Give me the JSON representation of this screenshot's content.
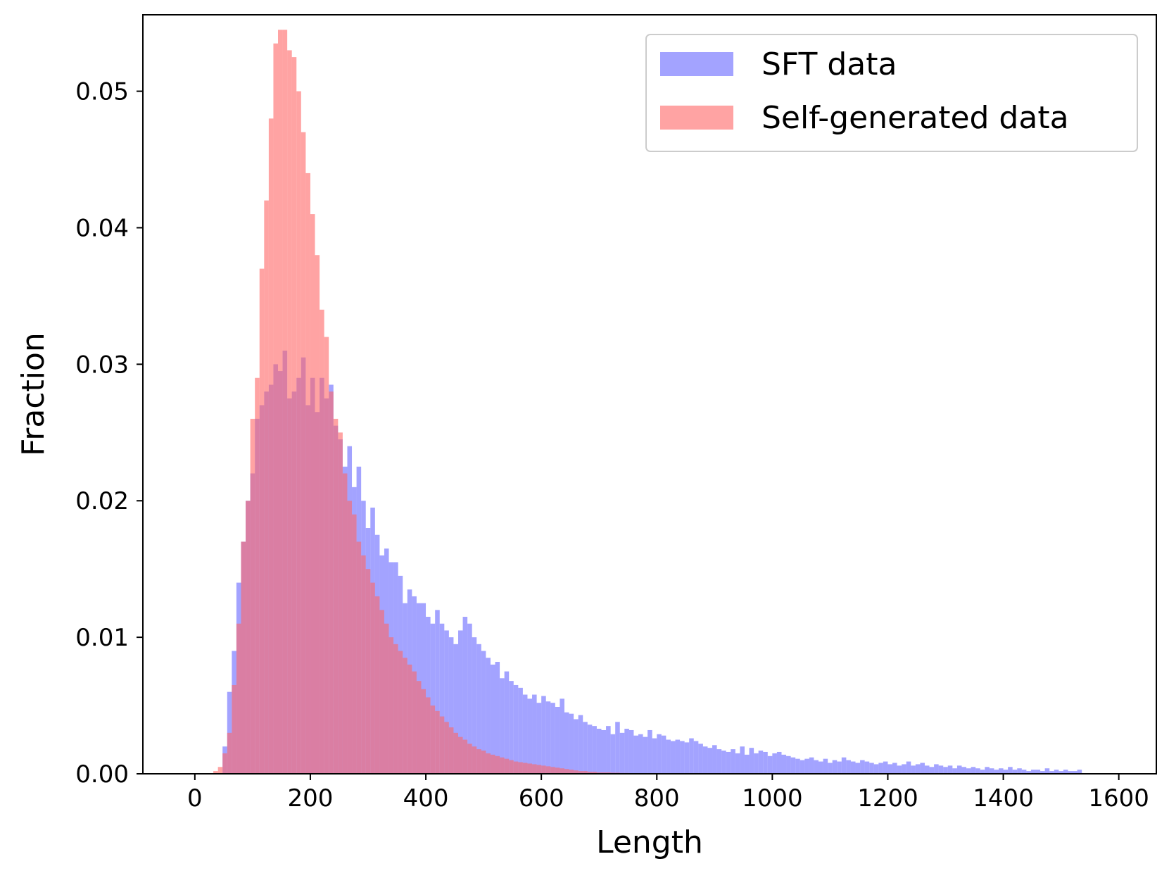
{
  "chart_data": {
    "type": "bar",
    "subtype": "overlapping-histogram",
    "xlabel": "Length",
    "ylabel": "Fraction",
    "xlim": [
      -90,
      1665
    ],
    "ylim": [
      0,
      0.0556
    ],
    "xticks": [
      0,
      200,
      400,
      600,
      800,
      1000,
      1200,
      1400,
      1600
    ],
    "yticks": [
      0.0,
      0.01,
      0.02,
      0.03,
      0.04,
      0.05
    ],
    "xtick_labels": [
      "0",
      "200",
      "400",
      "600",
      "800",
      "1000",
      "1200",
      "1400",
      "1600"
    ],
    "ytick_labels": [
      "0.00",
      "0.01",
      "0.02",
      "0.03",
      "0.04",
      "0.05"
    ],
    "grid": false,
    "legend": {
      "position": "top-right"
    },
    "bin_start": 0,
    "bin_width": 8,
    "series": [
      {
        "name": "SFT data",
        "color": "#6666ff",
        "opacity": 0.6,
        "values": [
          0,
          0,
          0,
          0,
          0,
          0,
          0.002,
          0.006,
          0.009,
          0.014,
          0.017,
          0.02,
          0.022,
          0.026,
          0.027,
          0.028,
          0.0285,
          0.03,
          0.0295,
          0.031,
          0.0275,
          0.028,
          0.029,
          0.0305,
          0.027,
          0.029,
          0.0265,
          0.029,
          0.0275,
          0.0285,
          0.0255,
          0.0245,
          0.0225,
          0.024,
          0.021,
          0.0225,
          0.02,
          0.018,
          0.0195,
          0.0175,
          0.016,
          0.0165,
          0.0155,
          0.0155,
          0.0145,
          0.0125,
          0.0135,
          0.013,
          0.0125,
          0.0125,
          0.0115,
          0.011,
          0.012,
          0.011,
          0.0105,
          0.01,
          0.0095,
          0.0105,
          0.0115,
          0.011,
          0.01,
          0.0095,
          0.009,
          0.0085,
          0.008,
          0.0082,
          0.007,
          0.0075,
          0.0068,
          0.0065,
          0.0063,
          0.0058,
          0.0055,
          0.0058,
          0.0052,
          0.0057,
          0.0053,
          0.0052,
          0.0049,
          0.0055,
          0.0045,
          0.0044,
          0.004,
          0.0043,
          0.0038,
          0.0036,
          0.0035,
          0.0033,
          0.0032,
          0.0035,
          0.0029,
          0.0038,
          0.003,
          0.0033,
          0.0032,
          0.0028,
          0.0029,
          0.0027,
          0.0032,
          0.0026,
          0.0029,
          0.0028,
          0.0025,
          0.0024,
          0.0025,
          0.0024,
          0.0023,
          0.0026,
          0.0024,
          0.0022,
          0.002,
          0.0019,
          0.0021,
          0.0018,
          0.0017,
          0.0016,
          0.0018,
          0.0015,
          0.002,
          0.0014,
          0.0019,
          0.0015,
          0.0017,
          0.0016,
          0.0013,
          0.0015,
          0.0016,
          0.0014,
          0.0013,
          0.0012,
          0.0011,
          0.001,
          0.0011,
          0.0012,
          0.001,
          0.0009,
          0.0011,
          0.0008,
          0.001,
          0.0009,
          0.0012,
          0.001,
          0.0009,
          0.0008,
          0.001,
          0.0009,
          0.0008,
          0.0007,
          0.0008,
          0.0009,
          0.0007,
          0.0008,
          0.0006,
          0.0007,
          0.0009,
          0.0006,
          0.0007,
          0.0008,
          0.0006,
          0.0005,
          0.0007,
          0.0006,
          0.0005,
          0.0006,
          0.0004,
          0.0006,
          0.0005,
          0.0004,
          0.0005,
          0.0004,
          0.0003,
          0.0005,
          0.0004,
          0.0003,
          0.0004,
          0.0003,
          0.0005,
          0.0003,
          0.0004,
          0.0003,
          0.0002,
          0.0003,
          0.0003,
          0.0002,
          0.0004,
          0.0002,
          0.0003,
          0.0002,
          0.0003,
          0.0002,
          0.0002,
          0.0003
        ]
      },
      {
        "name": "Self-generated data",
        "color": "#ff6666",
        "opacity": 0.6,
        "values": [
          0,
          0,
          0,
          0,
          0.0002,
          0.0005,
          0.0015,
          0.003,
          0.0065,
          0.011,
          0.017,
          0.02,
          0.026,
          0.029,
          0.037,
          0.042,
          0.048,
          0.0535,
          0.0545,
          0.0545,
          0.053,
          0.0525,
          0.05,
          0.047,
          0.044,
          0.041,
          0.038,
          0.034,
          0.032,
          0.028,
          0.026,
          0.025,
          0.022,
          0.02,
          0.019,
          0.017,
          0.016,
          0.015,
          0.014,
          0.013,
          0.012,
          0.011,
          0.01,
          0.0095,
          0.009,
          0.0085,
          0.008,
          0.0075,
          0.0068,
          0.0062,
          0.0056,
          0.005,
          0.0046,
          0.0042,
          0.0038,
          0.0034,
          0.003,
          0.0027,
          0.0025,
          0.0022,
          0.002,
          0.0018,
          0.0017,
          0.0015,
          0.0014,
          0.0013,
          0.0012,
          0.0011,
          0.001,
          0.0009,
          0.00085,
          0.0008,
          0.00075,
          0.0007,
          0.00065,
          0.0006,
          0.00055,
          0.0005,
          0.00045,
          0.0004,
          0.00035,
          0.0003,
          0.00025,
          0.0002,
          0.0002,
          0.00015,
          0.00015,
          0.0001,
          0.0001,
          0.0001,
          8e-05,
          8e-05,
          6e-05,
          6e-05,
          5e-05,
          5e-05,
          4e-05,
          4e-05,
          3e-05,
          3e-05,
          2e-05,
          2e-05,
          2e-05,
          2e-05,
          1e-05,
          1e-05,
          1e-05,
          1e-05,
          1e-05,
          1e-05,
          0,
          0,
          0,
          0,
          0,
          0,
          0,
          0,
          0,
          0,
          0,
          0,
          0,
          0,
          0,
          0,
          0,
          0,
          0,
          0,
          0,
          0,
          0,
          0,
          0,
          0,
          0,
          0,
          0,
          0,
          0,
          0,
          0,
          0,
          0,
          0,
          0,
          0,
          0,
          0,
          0,
          0,
          0,
          0,
          0,
          0,
          0,
          0,
          0,
          0,
          0,
          0,
          0,
          0,
          0,
          0,
          0,
          0,
          0,
          0,
          0,
          0,
          0,
          0,
          0,
          0,
          0,
          0,
          0,
          0,
          0,
          0,
          0,
          0,
          0,
          0,
          0,
          0,
          0,
          0,
          0,
          0,
          0,
          0,
          0,
          0,
          0,
          0,
          0
        ]
      }
    ]
  }
}
